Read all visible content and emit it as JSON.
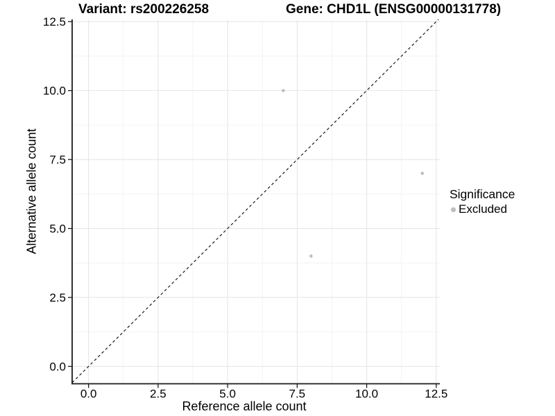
{
  "colors": {
    "background": "#ffffff",
    "axis": "#1a1a1a",
    "grid_major": "#e6e6e6",
    "grid_minor": "#f2f2f2",
    "point": "#bebebe",
    "reference_line": "#1a1a1a"
  },
  "chart_data": {
    "type": "scatter",
    "title_left": "Variant: rs200226258",
    "title_right": "Gene: CHD1L (ENSG00000131778)",
    "xlabel": "Reference allele count",
    "ylabel": "Alternative allele count",
    "xlim": [
      -0.59,
      12.63
    ],
    "ylim": [
      -0.63,
      12.58
    ],
    "x_ticks": [
      0,
      2.5,
      5,
      7.5,
      10,
      12.5
    ],
    "x_tick_labels": [
      "0.0",
      "2.5",
      "5.0",
      "7.5",
      "10.0",
      "12.5"
    ],
    "y_ticks": [
      0,
      2.5,
      5,
      7.5,
      10,
      12.5
    ],
    "y_tick_labels": [
      "0.0",
      "2.5",
      "5.0",
      "7.5",
      "10.0",
      "12.5"
    ],
    "minor_ticks": [
      1.25,
      3.75,
      6.25,
      8.75,
      11.25
    ],
    "grid": true,
    "series": [
      {
        "name": "Excluded",
        "color": "#bebebe",
        "points": [
          {
            "x": 7,
            "y": 10
          },
          {
            "x": 8,
            "y": 4
          },
          {
            "x": 12,
            "y": 7
          }
        ]
      }
    ],
    "reference_line": {
      "type": "identity",
      "slope": 1,
      "intercept": 0,
      "style": "dashed"
    },
    "legend": {
      "title": "Significance",
      "position": "right",
      "items": [
        {
          "label": "Excluded",
          "color": "#bebebe"
        }
      ]
    }
  }
}
